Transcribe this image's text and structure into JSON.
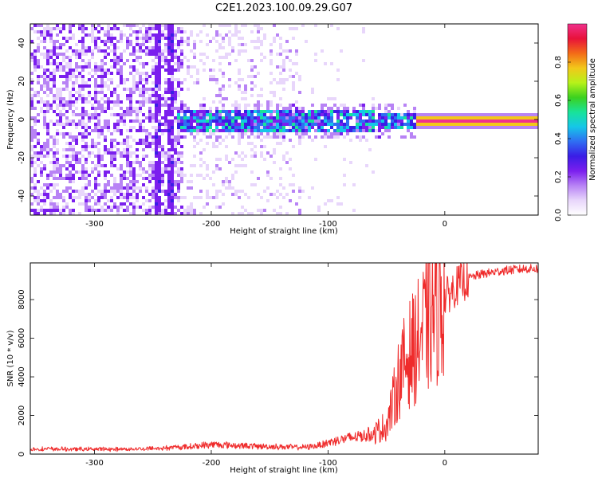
{
  "title": "C2E1.2023.100.09.29.G07",
  "colors": {
    "snr_line": "#ef2b2b",
    "colormap": [
      "#ffffff",
      "#e8d6fb",
      "#b883f5",
      "#7b1fee",
      "#3a1de6",
      "#2f6ef2",
      "#15c7e8",
      "#18e39a",
      "#3bd11f",
      "#b6f21a",
      "#f2c81a",
      "#f36b17",
      "#e8123a",
      "#f0318c"
    ]
  },
  "chart_data": [
    {
      "type": "heatmap",
      "xlabel": "Height of straight line (km)",
      "ylabel": "Frequency (Hz)",
      "xlim": [
        -355,
        80
      ],
      "ylim": [
        -50,
        50
      ],
      "x_ticks": [
        {
          "value": -300,
          "label": "-300"
        },
        {
          "value": -200,
          "label": "-200"
        },
        {
          "value": -100,
          "label": "-100"
        },
        {
          "value": 0,
          "label": "0"
        }
      ],
      "y_ticks": [
        {
          "value": -40,
          "label": "-40"
        },
        {
          "value": -20,
          "label": "-20"
        },
        {
          "value": 0,
          "label": "0"
        },
        {
          "value": 20,
          "label": "20"
        },
        {
          "value": 40,
          "label": "40"
        }
      ],
      "colorbar": {
        "label": "Normalized spectral amplitude",
        "range": [
          0,
          1
        ],
        "ticks": [
          {
            "value": 0.0,
            "label": "0.0"
          },
          {
            "value": 0.2,
            "label": "0.2"
          },
          {
            "value": 0.4,
            "label": "0.4"
          },
          {
            "value": 0.6,
            "label": "0.6"
          },
          {
            "value": 0.8,
            "label": "0.8"
          }
        ]
      },
      "features": {
        "signal_center_hz": 0,
        "signal_start_km": -230,
        "strong_signal_start_km": -25,
        "noise_dense_until_km": -225,
        "noise_sparse_until_km": -125,
        "vertical_streaks_km": [
          -247,
          -237
        ]
      }
    },
    {
      "type": "line",
      "xlabel": "Height of straight line (km)",
      "ylabel": "SNR (10 * v/v)",
      "xlim": [
        -355,
        80
      ],
      "ylim": [
        0,
        9900
      ],
      "x_ticks": [
        {
          "value": -300,
          "label": "-300"
        },
        {
          "value": -200,
          "label": "-200"
        },
        {
          "value": -100,
          "label": "-100"
        },
        {
          "value": 0,
          "label": "0"
        }
      ],
      "y_ticks": [
        {
          "value": 0,
          "label": "0"
        },
        {
          "value": 2000,
          "label": "2000"
        },
        {
          "value": 4000,
          "label": "4000"
        },
        {
          "value": 6000,
          "label": "6000"
        },
        {
          "value": 8000,
          "label": "8000"
        }
      ],
      "series": [
        {
          "x": [
            -355,
            -340,
            -320,
            -300,
            -280,
            -260,
            -240,
            -220,
            -200,
            -180,
            -160,
            -140,
            -120,
            -110,
            -100,
            -90,
            -80,
            -70,
            -60,
            -50,
            -45,
            -40,
            -35,
            -30,
            -25,
            -20,
            -15,
            -10,
            -5,
            0,
            10,
            20,
            30,
            40,
            50,
            60,
            70,
            80
          ],
          "y": [
            250,
            270,
            250,
            260,
            250,
            270,
            320,
            380,
            500,
            450,
            400,
            380,
            350,
            430,
            600,
            750,
            850,
            950,
            1100,
            1500,
            2500,
            3800,
            4600,
            5200,
            5600,
            6200,
            6800,
            7300,
            7800,
            8100,
            8700,
            9100,
            9300,
            9400,
            9500,
            9550,
            9600,
            9600
          ]
        }
      ]
    }
  ]
}
